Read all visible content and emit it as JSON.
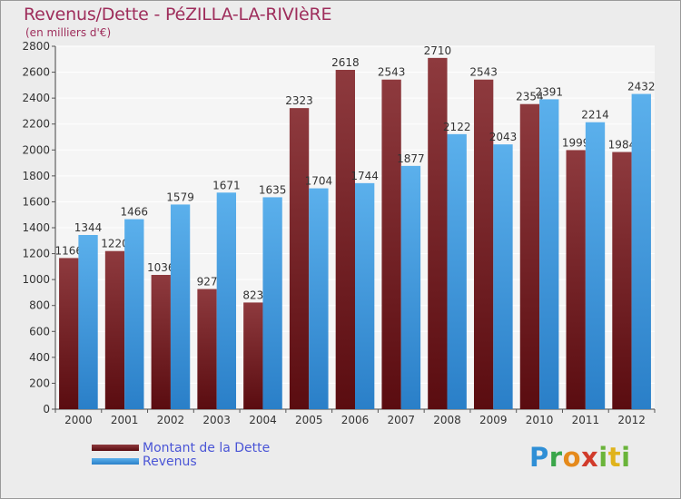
{
  "title": "Revenus/Dette - PéZILLA-LA-RIVIèRE",
  "subtitle": "(en milliers d'€)",
  "logo_text": "Proxiti",
  "colors": {
    "debt_top": "#8e3a3e",
    "debt_bottom": "#5a0c10",
    "revenue_top": "#5bb0ec",
    "revenue_bottom": "#2a7fc8",
    "title": "#9e2d5b",
    "legend_text": "#4a55d6"
  },
  "chart_data": {
    "type": "bar",
    "categories": [
      "2000",
      "2001",
      "2002",
      "2003",
      "2004",
      "2005",
      "2006",
      "2007",
      "2008",
      "2009",
      "2010",
      "2011",
      "2012"
    ],
    "series": [
      {
        "name": "Montant de la Dette",
        "values": [
          1166,
          1220,
          1036,
          927,
          823,
          2323,
          2618,
          2543,
          2710,
          2543,
          2354,
          1999,
          1984
        ],
        "labels": [
          "1166",
          "1220",
          "1036",
          "927",
          "823",
          "2323",
          "2618",
          "2543",
          "2710",
          "2543",
          "2354",
          "1999",
          "1984"
        ]
      },
      {
        "name": "Revenus",
        "values": [
          1344,
          1466,
          1579,
          1671,
          1635,
          1704,
          1744,
          1877,
          2122,
          2043,
          2391,
          2214,
          2432
        ],
        "labels": [
          "1344",
          "1466",
          "1579",
          "1671",
          "1635",
          "1704",
          "1744",
          "1877",
          "2122",
          "2043",
          "2391",
          "2214",
          "2432"
        ]
      }
    ],
    "ylim": [
      0,
      2800
    ],
    "yticks": [
      "0",
      "200",
      "400",
      "600",
      "800",
      "1000",
      "1200",
      "1400",
      "1600",
      "1800",
      "2000",
      "2200",
      "2400",
      "2600",
      "2800"
    ],
    "grid": true,
    "legend_position": "bottom-left"
  }
}
